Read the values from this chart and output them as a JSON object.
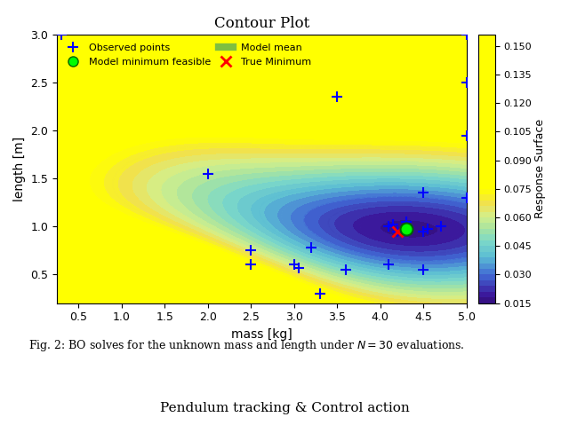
{
  "title": "Contour Plot",
  "xlabel": "mass [kg]",
  "ylabel": "length [m]",
  "colorbar_label": "Response Surface",
  "xlim": [
    0.25,
    5.0
  ],
  "ylim": [
    0.2,
    3.0
  ],
  "xticks": [
    0.5,
    1.0,
    1.5,
    2.0,
    2.5,
    3.0,
    3.5,
    4.0,
    4.5,
    5.0
  ],
  "yticks": [
    0.5,
    1.0,
    1.5,
    2.0,
    2.5,
    3.0
  ],
  "clim": [
    0.01,
    0.075
  ],
  "true_minimum": [
    4.2,
    0.95
  ],
  "model_minimum": [
    4.3,
    0.97
  ],
  "observed_points": [
    [
      0.3,
      3.0
    ],
    [
      5.0,
      3.0
    ],
    [
      5.0,
      2.5
    ],
    [
      5.0,
      1.95
    ],
    [
      3.5,
      2.35
    ],
    [
      2.0,
      1.55
    ],
    [
      4.5,
      1.35
    ],
    [
      5.0,
      1.3
    ],
    [
      4.1,
      1.0
    ],
    [
      4.2,
      0.95
    ],
    [
      4.3,
      1.05
    ],
    [
      4.5,
      0.95
    ],
    [
      4.7,
      1.0
    ],
    [
      4.55,
      0.97
    ],
    [
      4.15,
      1.02
    ],
    [
      2.5,
      0.6
    ],
    [
      3.0,
      0.6
    ],
    [
      3.05,
      0.57
    ],
    [
      3.6,
      0.55
    ],
    [
      4.5,
      0.55
    ],
    [
      2.5,
      0.75
    ],
    [
      3.2,
      0.78
    ],
    [
      3.3,
      0.3
    ],
    [
      4.1,
      0.6
    ]
  ],
  "caption": "Fig. 2: BO solves for the unknown mass and length under $N = 30$ evaluations.",
  "bottom_title": "Pendulum tracking & Control action"
}
